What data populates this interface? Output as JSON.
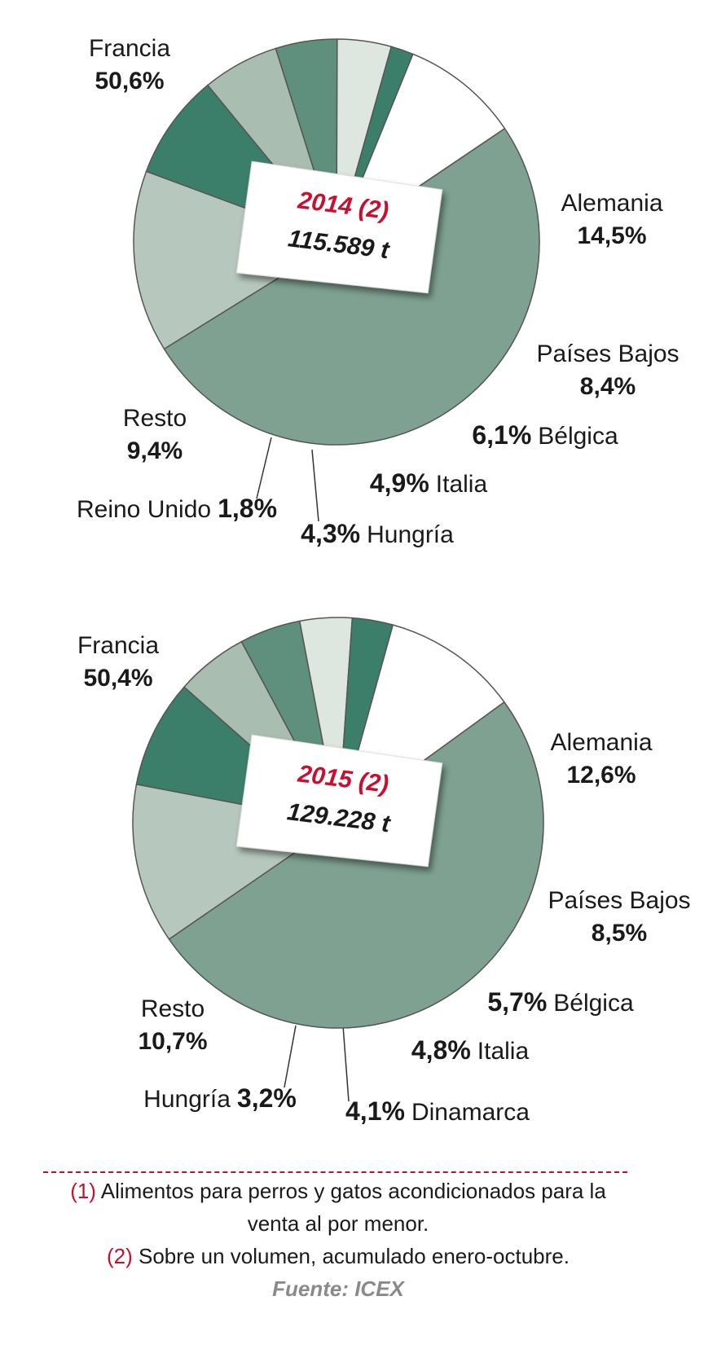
{
  "chart_data": [
    {
      "type": "pie",
      "center_title": "2014 (2)",
      "center_subtitle": "115.589 t",
      "categories": [
        "Francia",
        "Alemania",
        "Países Bajos",
        "Bélgica",
        "Italia",
        "Hungría",
        "Reino Unido",
        "Resto"
      ],
      "values": [
        50.6,
        14.5,
        8.4,
        6.1,
        4.9,
        4.3,
        1.8,
        9.4
      ],
      "value_labels": [
        "50,6%",
        "14,5%",
        "8,4%",
        "6,1%",
        "4,9%",
        "4,3%",
        "1,8%",
        "9,4%"
      ],
      "colors": [
        "#7fa192",
        "#b6c8bd",
        "#3b7f6b",
        "#a9bdb1",
        "#5f8f7d",
        "#dde6df",
        "#3b7f6b",
        "#ffffff"
      ]
    },
    {
      "type": "pie",
      "center_title": "2015 (2)",
      "center_subtitle": "129.228 t",
      "categories": [
        "Francia",
        "Alemania",
        "Países Bajos",
        "Bélgica",
        "Italia",
        "Dinamarca",
        "Hungría",
        "Resto"
      ],
      "values": [
        50.4,
        12.6,
        8.5,
        5.7,
        4.8,
        4.1,
        3.2,
        10.7
      ],
      "value_labels": [
        "50,4%",
        "12,6%",
        "8,5%",
        "5,7%",
        "4,8%",
        "4,1%",
        "3,2%",
        "10,7%"
      ],
      "colors": [
        "#7fa192",
        "#b6c8bd",
        "#3b7f6b",
        "#a9bdb1",
        "#5f8f7d",
        "#dde6df",
        "#3b7f6b",
        "#ffffff"
      ]
    }
  ],
  "footnotes": [
    {
      "marker": "(1)",
      "text": "Alimentos para perros y gatos acondicionados para la venta al por menor."
    },
    {
      "marker": "(2)",
      "text": "Sobre un volumen, acumulado enero-octubre."
    }
  ],
  "source": "Fuente: ICEX"
}
